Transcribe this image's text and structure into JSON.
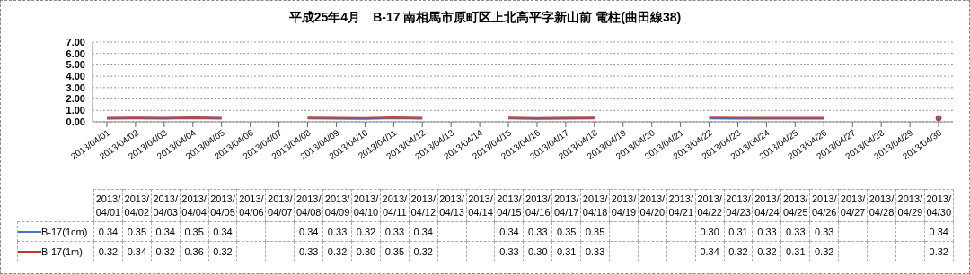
{
  "chart_data": {
    "type": "line",
    "title": "平成25年4月　B-17 南相馬市原町区上北高平字新山前 電柱(曲田線38)",
    "categories": [
      "2013/04/01",
      "2013/04/02",
      "2013/04/03",
      "2013/04/04",
      "2013/04/05",
      "2013/04/06",
      "2013/04/07",
      "2013/04/08",
      "2013/04/09",
      "2013/04/10",
      "2013/04/11",
      "2013/04/12",
      "2013/04/13",
      "2013/04/14",
      "2013/04/15",
      "2013/04/16",
      "2013/04/17",
      "2013/04/18",
      "2013/04/19",
      "2013/04/20",
      "2013/04/21",
      "2013/04/22",
      "2013/04/23",
      "2013/04/24",
      "2013/04/25",
      "2013/04/26",
      "2013/04/27",
      "2013/04/28",
      "2013/04/29",
      "2013/04/30"
    ],
    "series": [
      {
        "name": "B-17(1cm)",
        "color": "#4472c4",
        "values": [
          0.34,
          0.35,
          0.34,
          0.35,
          0.34,
          null,
          null,
          0.34,
          0.33,
          0.32,
          0.33,
          0.34,
          null,
          null,
          0.34,
          0.33,
          0.35,
          0.35,
          null,
          null,
          null,
          0.3,
          0.31,
          0.33,
          0.33,
          0.33,
          null,
          null,
          null,
          0.34
        ],
        "value_labels": [
          "0.34",
          "0.35",
          "0.34",
          "0.35",
          "0.34",
          null,
          null,
          "0.34",
          "0.33",
          "0.32",
          "0.33",
          "0.34",
          null,
          null,
          "0.34",
          "0.33",
          "0.35",
          "0.35",
          null,
          null,
          null,
          "0.30",
          "0.31",
          "0.33",
          "0.33",
          "0.33",
          null,
          null,
          null,
          "0.34"
        ]
      },
      {
        "name": "B-17(1m)",
        "color": "#c0392b",
        "values": [
          0.32,
          0.34,
          0.32,
          0.36,
          0.32,
          null,
          null,
          0.33,
          0.32,
          0.3,
          0.35,
          0.32,
          null,
          null,
          0.33,
          0.3,
          0.31,
          0.33,
          null,
          null,
          null,
          0.34,
          0.32,
          0.32,
          0.31,
          0.32,
          null,
          null,
          null,
          0.32
        ],
        "value_labels": [
          "0.32",
          "0.34",
          "0.32",
          "0.36",
          "0.32",
          null,
          null,
          "0.33",
          "0.32",
          "0.30",
          "0.35",
          "0.32",
          null,
          null,
          "0.33",
          "0.30",
          "0.31",
          "0.33",
          null,
          null,
          null,
          "0.34",
          "0.32",
          "0.32",
          "0.31",
          "0.32",
          null,
          null,
          null,
          "0.32"
        ]
      }
    ],
    "ylim": [
      0,
      7
    ],
    "yticks": [
      {
        "value": 0,
        "label": "0.00"
      },
      {
        "value": 1,
        "label": "1.00"
      },
      {
        "value": 2,
        "label": "2.00"
      },
      {
        "value": 3,
        "label": "3.00"
      },
      {
        "value": 4,
        "label": "4.00"
      },
      {
        "value": 5,
        "label": "5.00"
      },
      {
        "value": 6,
        "label": "6.00"
      },
      {
        "value": 7,
        "label": "7.00"
      }
    ],
    "grid": "y",
    "legend": "bottom left",
    "marker": "none",
    "line_style": "solid"
  }
}
